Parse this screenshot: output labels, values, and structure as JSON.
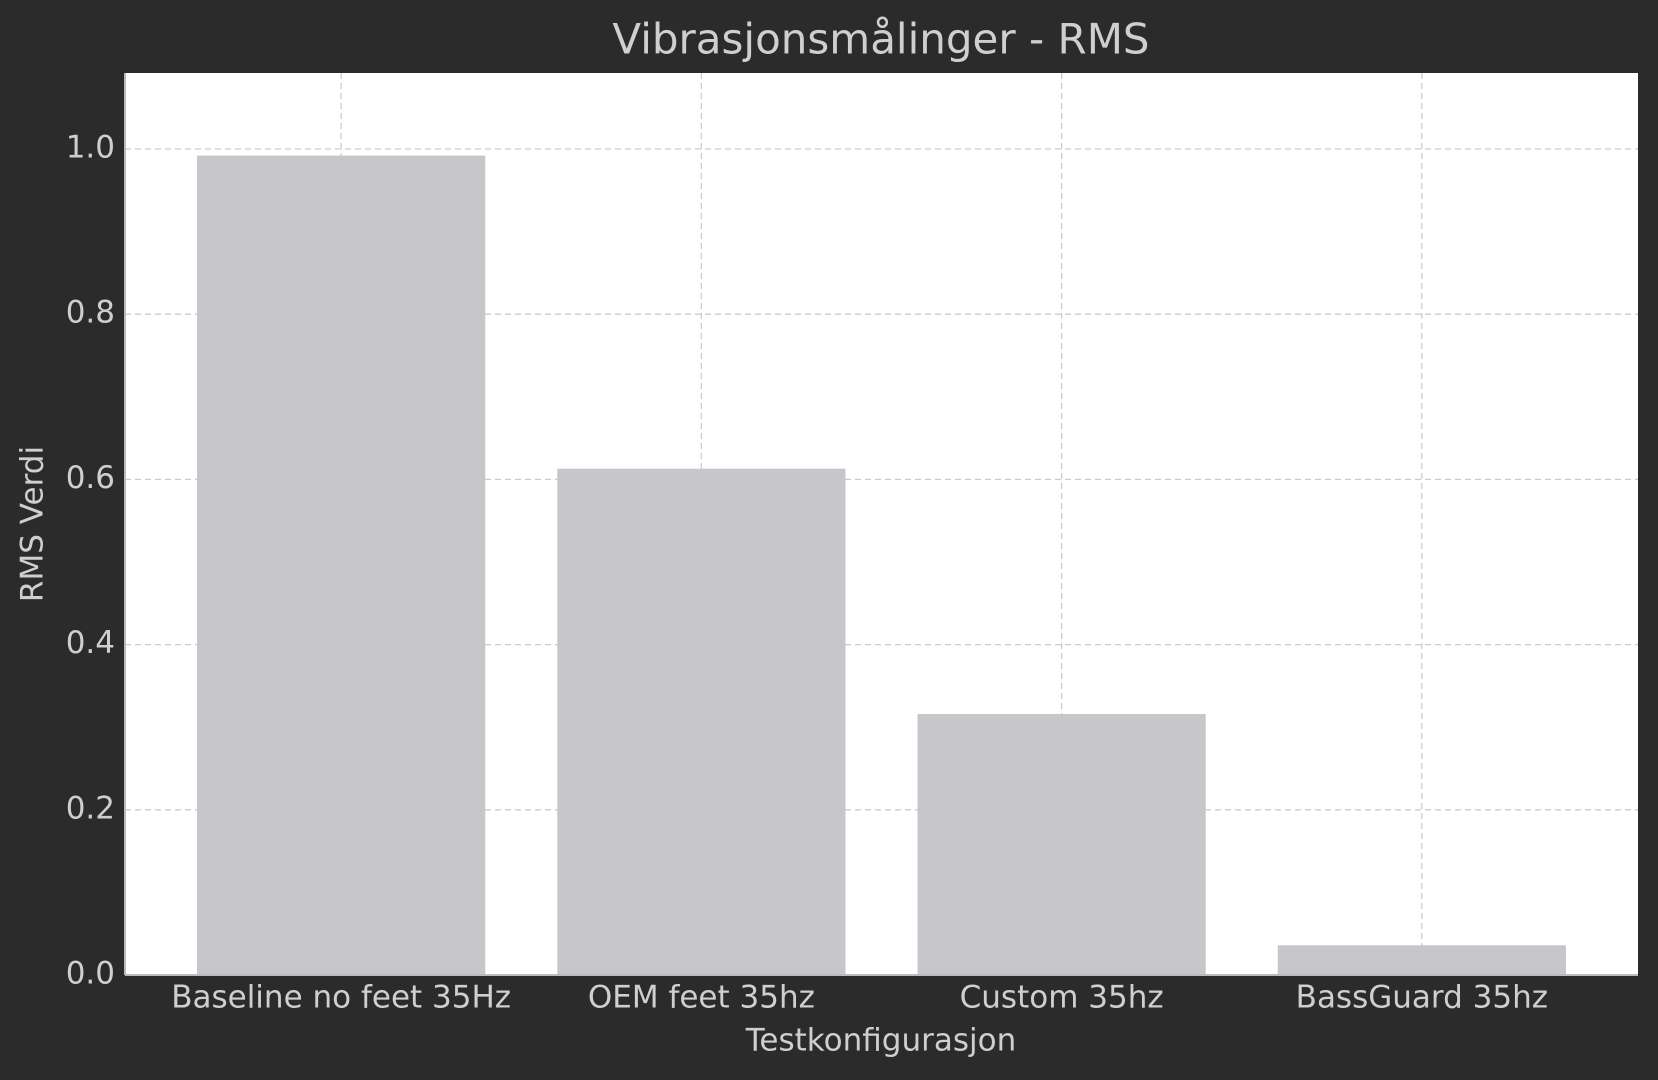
{
  "chart_data": {
    "type": "bar",
    "title": "Vibrasjonsmålinger - RMS",
    "x_label": "Testkonfigurasjon",
    "y_label": "RMS Verdi",
    "categories": [
      "Baseline no feet 35Hz",
      "OEM feet 35hz",
      "Custom 35hz",
      "BassGuard 35hz"
    ],
    "values": [
      0.992,
      0.613,
      0.316,
      0.036
    ],
    "color": "#c4c3c7",
    "ylim": [
      0,
      1.092
    ],
    "yticks": [
      {
        "value": 0,
        "label": "0.0"
      },
      0.2,
      0.4,
      0.6,
      0.8,
      {
        "value": 1,
        "label": "1.0"
      }
    ],
    "grid": true
  }
}
